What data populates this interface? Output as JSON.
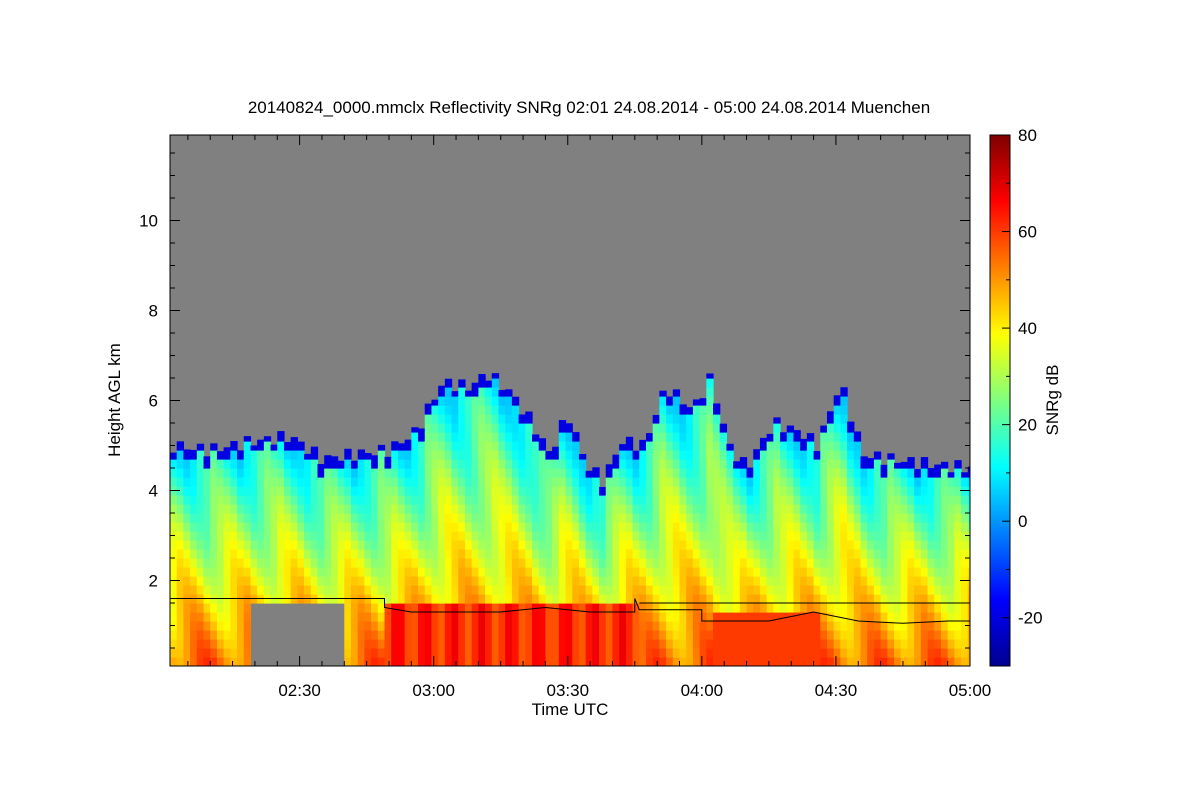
{
  "chart_data": {
    "type": "heatmap",
    "title": "20140824_0000.mmclx Reflectivity SNRg   02:01 24.08.2014 - 05:00 24.08.2014 Muenchen",
    "xlabel": "Time UTC",
    "ylabel": "Height AGL km",
    "colorbar_label": "SNRg dB",
    "x_range_minutes_utc": [
      121,
      300
    ],
    "x_ticks": [
      {
        "label": "02:30",
        "minutes": 150
      },
      {
        "label": "03:00",
        "minutes": 180
      },
      {
        "label": "03:30",
        "minutes": 210
      },
      {
        "label": "04:00",
        "minutes": 240
      },
      {
        "label": "04:30",
        "minutes": 270
      },
      {
        "label": "05:00",
        "minutes": 300
      }
    ],
    "ylim": [
      0.1,
      11.9
    ],
    "y_ticks": [
      2,
      4,
      6,
      8,
      10
    ],
    "colorbar_range": [
      -30,
      80
    ],
    "colorbar_ticks": [
      80,
      60,
      40,
      20,
      0,
      -20
    ],
    "no_signal_color": "#808080",
    "colormap": [
      "#00008f",
      "#0000ff",
      "#007fff",
      "#00ffff",
      "#7fff7f",
      "#ffff00",
      "#ff7f00",
      "#ff0000",
      "#7f0000"
    ],
    "echo_top_km": [
      {
        "minutes": 121,
        "km": 5.0
      },
      {
        "minutes": 130,
        "km": 4.9
      },
      {
        "minutes": 140,
        "km": 5.1
      },
      {
        "minutes": 148,
        "km": 5.2
      },
      {
        "minutes": 155,
        "km": 4.7
      },
      {
        "minutes": 162,
        "km": 4.8
      },
      {
        "minutes": 170,
        "km": 4.9
      },
      {
        "minutes": 176,
        "km": 5.3
      },
      {
        "minutes": 182,
        "km": 6.4
      },
      {
        "minutes": 188,
        "km": 6.3
      },
      {
        "minutes": 192,
        "km": 6.6
      },
      {
        "minutes": 197,
        "km": 6.2
      },
      {
        "minutes": 202,
        "km": 5.5
      },
      {
        "minutes": 206,
        "km": 4.8
      },
      {
        "minutes": 210,
        "km": 5.7
      },
      {
        "minutes": 214,
        "km": 4.6
      },
      {
        "minutes": 218,
        "km": 4.2
      },
      {
        "minutes": 222,
        "km": 5.1
      },
      {
        "minutes": 227,
        "km": 5.0
      },
      {
        "minutes": 232,
        "km": 6.3
      },
      {
        "minutes": 238,
        "km": 5.8
      },
      {
        "minutes": 242,
        "km": 6.5
      },
      {
        "minutes": 246,
        "km": 5.0
      },
      {
        "minutes": 250,
        "km": 4.5
      },
      {
        "minutes": 256,
        "km": 5.5
      },
      {
        "minutes": 262,
        "km": 5.3
      },
      {
        "minutes": 266,
        "km": 5.0
      },
      {
        "minutes": 271,
        "km": 6.4
      },
      {
        "minutes": 276,
        "km": 4.8
      },
      {
        "minutes": 282,
        "km": 4.7
      },
      {
        "minutes": 290,
        "km": 4.6
      },
      {
        "minutes": 300,
        "km": 4.5
      }
    ],
    "boundary_line_km": [
      {
        "minutes": 121,
        "km": 1.6
      },
      {
        "minutes": 169,
        "km": 1.6
      },
      {
        "minutes": 169,
        "km": 1.4
      },
      {
        "minutes": 175,
        "km": 1.3
      },
      {
        "minutes": 185,
        "km": 1.3
      },
      {
        "minutes": 195,
        "km": 1.3
      },
      {
        "minutes": 205,
        "km": 1.4
      },
      {
        "minutes": 215,
        "km": 1.3
      },
      {
        "minutes": 225,
        "km": 1.3
      },
      {
        "minutes": 225,
        "km": 1.6
      },
      {
        "minutes": 226,
        "km": 1.35
      },
      {
        "minutes": 240,
        "km": 1.35
      },
      {
        "minutes": 240,
        "km": 1.1
      },
      {
        "minutes": 255,
        "km": 1.1
      },
      {
        "minutes": 265,
        "km": 1.3
      },
      {
        "minutes": 275,
        "km": 1.1
      },
      {
        "minutes": 285,
        "km": 1.05
      },
      {
        "minutes": 295,
        "km": 1.1
      },
      {
        "minutes": 300,
        "km": 1.1
      }
    ],
    "upper_boundary_line_km": [
      {
        "minutes": 226,
        "km": 1.5
      },
      {
        "minutes": 300,
        "km": 1.5
      }
    ]
  }
}
